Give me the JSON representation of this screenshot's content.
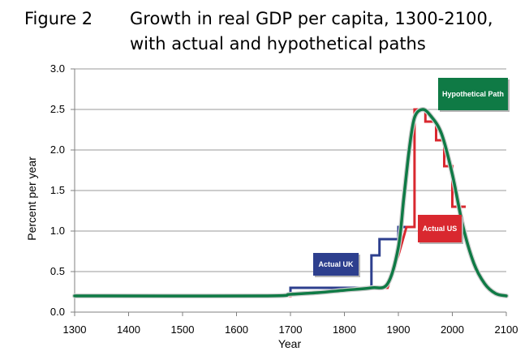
{
  "figure": {
    "label": "Figure 2",
    "title_line1": "Growth in real GDP per capita, 1300-2100,",
    "title_line2": "with actual and hypothetical paths"
  },
  "chart_data": {
    "type": "line",
    "xlabel": "Year",
    "ylabel": "Percent per year",
    "xlim": [
      1300,
      2100
    ],
    "ylim": [
      0,
      3.0
    ],
    "x_ticks": [
      1300,
      1400,
      1500,
      1600,
      1700,
      1800,
      1900,
      2000,
      2100
    ],
    "y_ticks": [
      0.0,
      0.5,
      1.0,
      1.5,
      2.0,
      2.5,
      3.0
    ],
    "x_tick_labels": [
      "1300",
      "1400",
      "1500",
      "1600",
      "1700",
      "1800",
      "1900",
      "2000",
      "2100"
    ],
    "y_tick_labels": [
      "0.0",
      "0.5",
      "1.0",
      "1.5",
      "2.0",
      "2.5",
      "3.0"
    ],
    "grid": "horizontal",
    "series": [
      {
        "name": "Actual UK",
        "color": "#2d3f8e",
        "style": "step",
        "points": [
          [
            1300,
            0.2
          ],
          [
            1700,
            0.2
          ],
          [
            1700,
            0.3
          ],
          [
            1850,
            0.3
          ],
          [
            1850,
            0.7
          ],
          [
            1865,
            0.7
          ],
          [
            1865,
            0.9
          ],
          [
            1900,
            0.9
          ],
          [
            1900,
            1.05
          ],
          [
            1915,
            1.05
          ]
        ]
      },
      {
        "name": "Actual US",
        "color": "#d9282f",
        "style": "step",
        "points": [
          [
            1680,
            0.2
          ],
          [
            1700,
            0.2
          ],
          [
            1700,
            0.22
          ],
          [
            1860,
            0.3
          ],
          [
            1880,
            0.3
          ],
          [
            1900,
            0.7
          ],
          [
            1915,
            1.05
          ],
          [
            1930,
            1.05
          ],
          [
            1930,
            2.5
          ],
          [
            1950,
            2.5
          ],
          [
            1950,
            2.35
          ],
          [
            1970,
            2.35
          ],
          [
            1970,
            2.12
          ],
          [
            1985,
            2.12
          ],
          [
            1985,
            1.8
          ],
          [
            2000,
            1.8
          ],
          [
            2000,
            1.3
          ],
          [
            2025,
            1.3
          ]
        ]
      },
      {
        "name": "Hypothetical Path",
        "color": "#0f7a45",
        "style": "smooth",
        "points": [
          [
            1300,
            0.2
          ],
          [
            1650,
            0.2
          ],
          [
            1700,
            0.22
          ],
          [
            1750,
            0.24
          ],
          [
            1800,
            0.27
          ],
          [
            1850,
            0.3
          ],
          [
            1880,
            0.35
          ],
          [
            1900,
            0.8
          ],
          [
            1910,
            1.4
          ],
          [
            1920,
            2.0
          ],
          [
            1930,
            2.4
          ],
          [
            1945,
            2.5
          ],
          [
            1960,
            2.42
          ],
          [
            1980,
            2.2
          ],
          [
            2000,
            1.7
          ],
          [
            2020,
            1.05
          ],
          [
            2040,
            0.6
          ],
          [
            2060,
            0.35
          ],
          [
            2080,
            0.23
          ],
          [
            2100,
            0.2
          ]
        ]
      }
    ],
    "legend_boxes": [
      {
        "text": "Actual UK",
        "color": "#2d3f8e"
      },
      {
        "text": "Actual US",
        "color": "#d9282f"
      },
      {
        "text": "Hypothetical Path",
        "color": "#0f7a45"
      }
    ]
  }
}
